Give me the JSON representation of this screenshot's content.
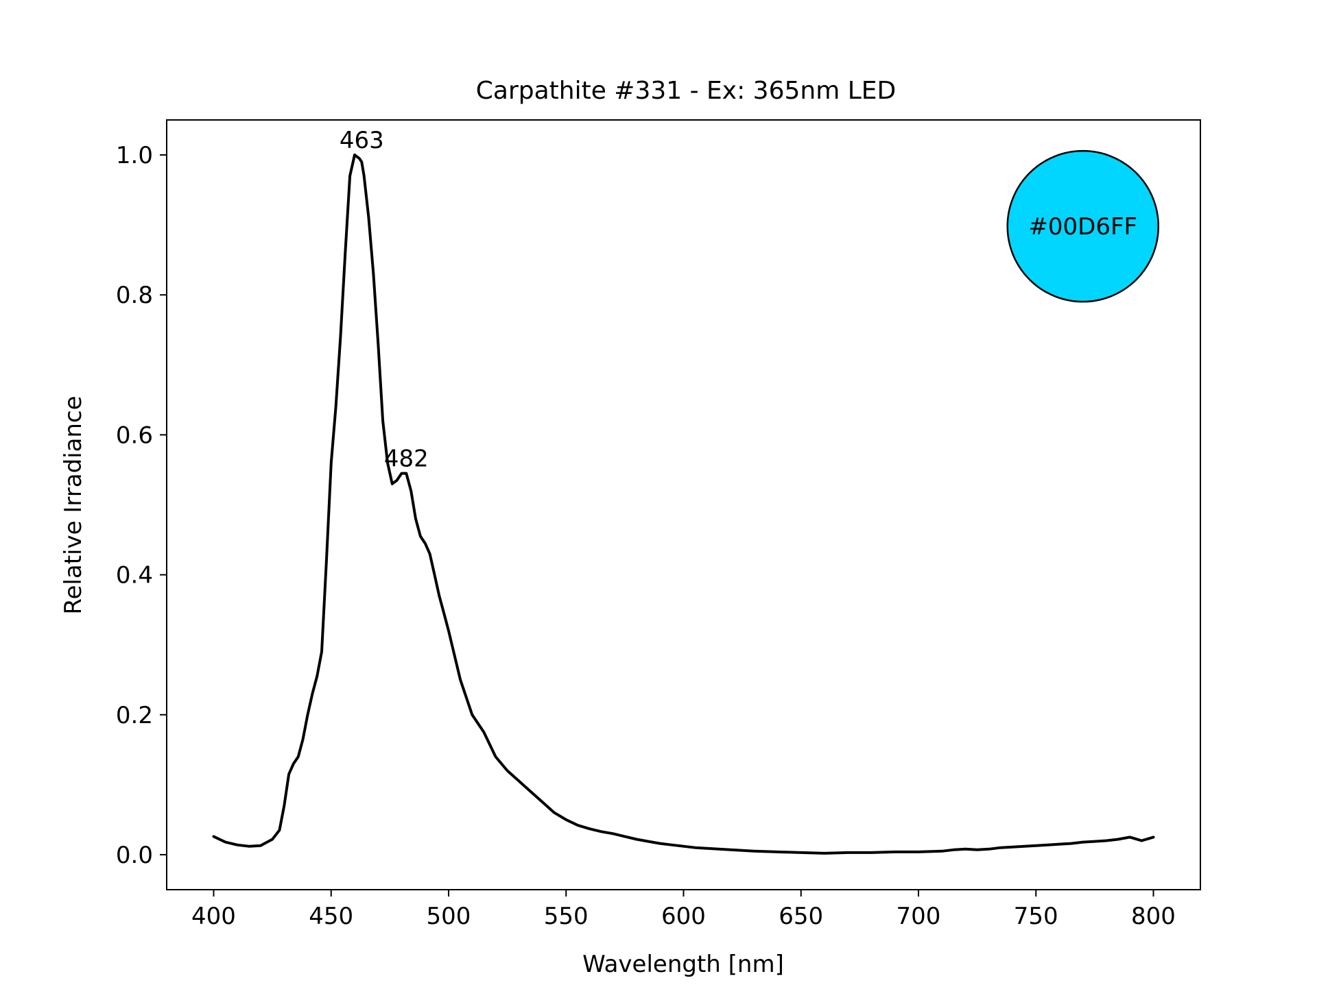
{
  "chart_data": {
    "type": "line",
    "title": "Carpathite #331 - Ex: 365nm LED",
    "xlabel": "Wavelength [nm]",
    "ylabel": "Relative Irradiance",
    "xlim": [
      380,
      820
    ],
    "ylim": [
      -0.05,
      1.05
    ],
    "xticks": [
      400,
      450,
      500,
      550,
      600,
      650,
      700,
      750,
      800
    ],
    "xtick_labels": [
      "400",
      "450",
      "500",
      "550",
      "600",
      "650",
      "700",
      "750",
      "800"
    ],
    "yticks": [
      0.0,
      0.2,
      0.4,
      0.6,
      0.8,
      1.0
    ],
    "ytick_labels": [
      "0.0",
      "0.2",
      "0.4",
      "0.6",
      "0.8",
      "1.0"
    ],
    "grid": false,
    "line_color": "#000000",
    "series": [
      {
        "x": [
          400,
          405,
          410,
          415,
          420,
          425,
          428,
          430,
          432,
          434,
          436,
          438,
          440,
          442,
          444,
          446,
          448,
          450,
          452,
          454,
          456,
          458,
          460,
          462,
          463,
          464,
          466,
          468,
          470,
          472,
          474,
          476,
          478,
          480,
          482,
          484,
          486,
          488,
          490,
          492,
          494,
          496,
          498,
          500,
          505,
          510,
          515,
          520,
          525,
          530,
          535,
          540,
          545,
          550,
          555,
          560,
          565,
          570,
          575,
          580,
          585,
          590,
          595,
          600,
          605,
          610,
          615,
          620,
          625,
          630,
          640,
          650,
          660,
          670,
          680,
          690,
          700,
          710,
          715,
          720,
          725,
          730,
          735,
          740,
          745,
          750,
          755,
          760,
          765,
          770,
          775,
          780,
          785,
          790,
          795,
          800
        ],
        "y": [
          0.026,
          0.018,
          0.014,
          0.012,
          0.013,
          0.022,
          0.035,
          0.07,
          0.115,
          0.13,
          0.14,
          0.165,
          0.2,
          0.23,
          0.255,
          0.29,
          0.42,
          0.56,
          0.64,
          0.74,
          0.86,
          0.97,
          1.0,
          0.995,
          0.99,
          0.97,
          0.91,
          0.83,
          0.73,
          0.62,
          0.56,
          0.53,
          0.535,
          0.545,
          0.545,
          0.52,
          0.48,
          0.455,
          0.445,
          0.43,
          0.4,
          0.37,
          0.345,
          0.32,
          0.25,
          0.2,
          0.175,
          0.14,
          0.12,
          0.105,
          0.09,
          0.075,
          0.06,
          0.05,
          0.042,
          0.037,
          0.033,
          0.03,
          0.026,
          0.022,
          0.019,
          0.016,
          0.014,
          0.012,
          0.01,
          0.009,
          0.008,
          0.007,
          0.006,
          0.005,
          0.004,
          0.003,
          0.002,
          0.003,
          0.003,
          0.004,
          0.004,
          0.005,
          0.007,
          0.008,
          0.007,
          0.008,
          0.01,
          0.011,
          0.012,
          0.013,
          0.014,
          0.015,
          0.016,
          0.018,
          0.019,
          0.02,
          0.022,
          0.025,
          0.02,
          0.025
        ]
      }
    ],
    "annotations": [
      {
        "text": "463",
        "x": 463,
        "y": 1.0
      },
      {
        "text": "482",
        "x": 482,
        "y": 0.545
      }
    ],
    "swatch": {
      "label": "#00D6FF",
      "color": "#00D6FF",
      "x": 770,
      "y": 0.898
    }
  }
}
